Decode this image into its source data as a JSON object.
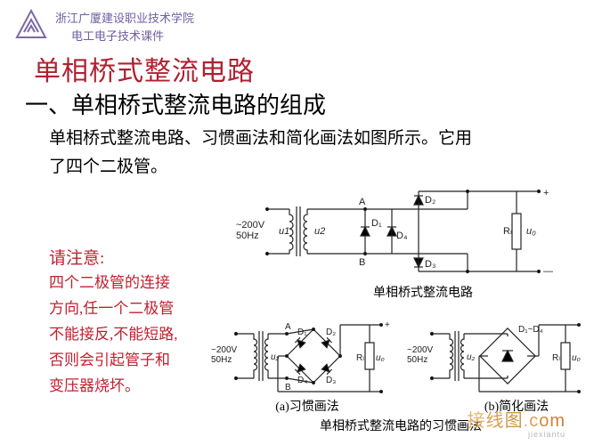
{
  "colors": {
    "logo_stroke": "#7b68a6",
    "header_text": "#6f5fa0",
    "title_text": "#b02030",
    "section_title": "#000000",
    "body_text": "#000000",
    "note_text": "#c02030",
    "circuit_stroke": "#222222",
    "circuit_text": "#222222",
    "watermark1": "#e8cfa8",
    "watermark2": "#b8b8b8"
  },
  "fonts": {
    "title_size": 30,
    "section_size": 26,
    "body_size": 19,
    "note_size": 17,
    "header_size": 13,
    "caption_size": 14,
    "circuit_label_size": 11
  },
  "header": {
    "org": "浙江广厦建设职业技术学院",
    "course": "电工电子技术课件"
  },
  "title": "单相桥式整流电路",
  "section_title": "一、单相桥式整流电路的组成",
  "body1": "单相桥式整流电路、习惯画法和简化画法如图所示。它用",
  "body2": "了四个二极管。",
  "note_title": "请注意:",
  "note_lines": [
    "四个二极管的连接",
    "方向,任一个二极管",
    "不能接反,不能短路,",
    "否则会引起管子和",
    "变压器烧坏。"
  ],
  "watermark": {
    "line1": "接线图.com",
    "line2": "jiexiantu"
  },
  "figure_top": {
    "input_label_line1": "~200V",
    "input_label_line2": "50Hz",
    "u1_label": "u1",
    "u2_label": "u2",
    "node_A": "A",
    "node_B": "B",
    "diodes": [
      "D₁",
      "D₂",
      "D₃",
      "D₄"
    ],
    "load_label": "Rₗ",
    "out_label": "u₀",
    "plus": "+",
    "minus": "—",
    "caption": "单相桥式整流电路"
  },
  "figure_bottom_a": {
    "input_label_line1": "~200V",
    "input_label_line2": "50Hz",
    "u2_label": "u₂",
    "node_A": "A",
    "node_B": "B",
    "diodes": [
      "D₁",
      "D₂",
      "D₃",
      "D₄"
    ],
    "load_label": "Rₗ",
    "out_label": "u₀",
    "plus": "+",
    "caption": "(a)习惯画法"
  },
  "figure_bottom_b": {
    "input_label_line1": "~200V",
    "input_label_line2": "50Hz",
    "u2_label": "u₂",
    "bridge_label": "D₁~D₄",
    "load_label": "Rₗ",
    "out_label": "u₀",
    "caption": "(b)简化画法"
  },
  "shared_caption": "单相桥式整流电路的习惯画法"
}
